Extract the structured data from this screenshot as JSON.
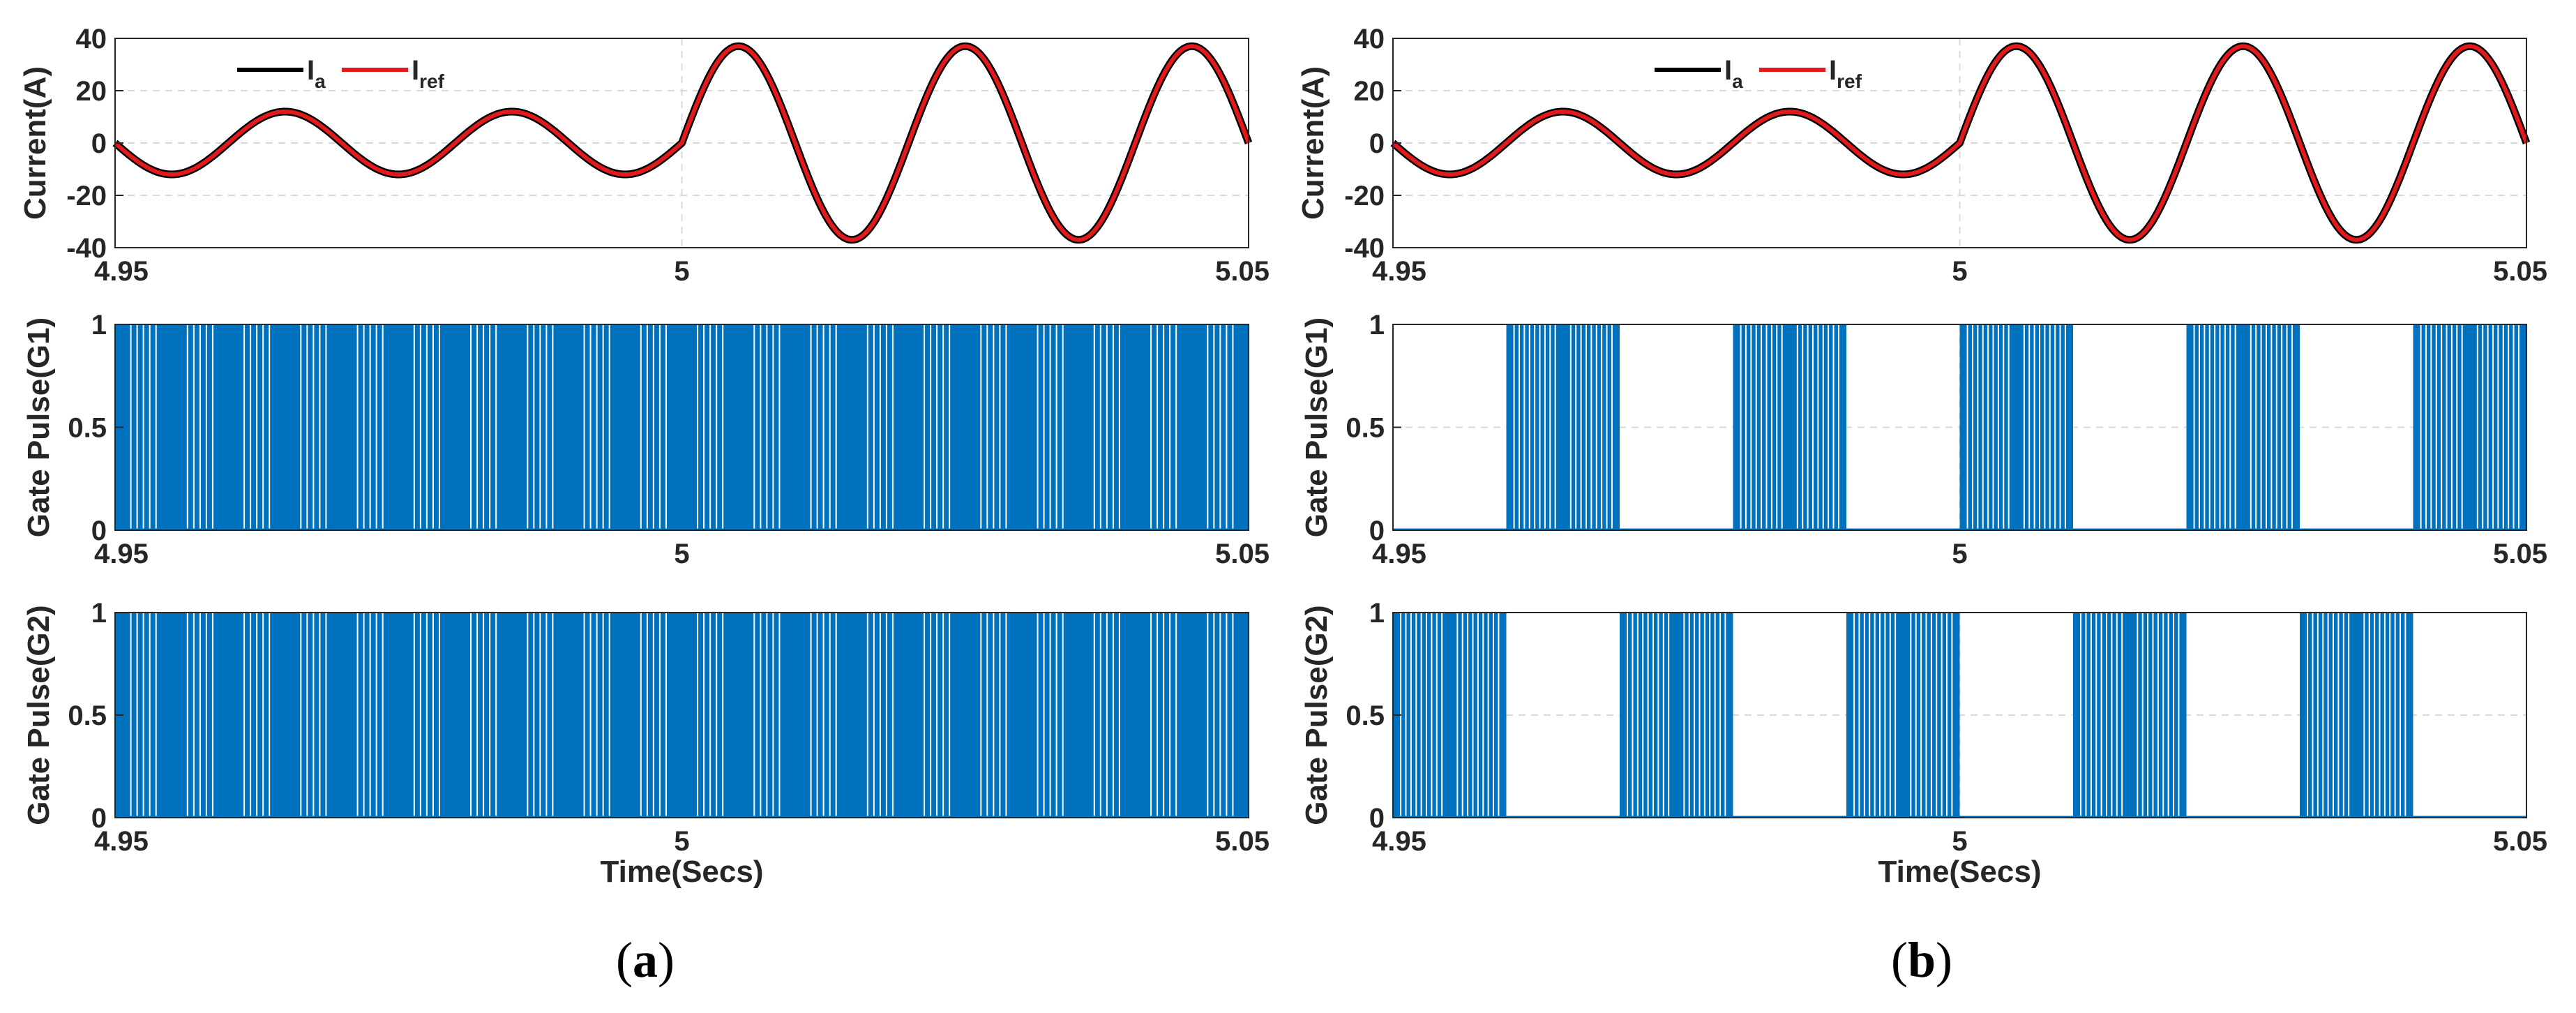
{
  "chart_data": [
    {
      "panel": "a",
      "type": "line",
      "ylabel": "Current(A)",
      "xlim": [
        4.95,
        5.05
      ],
      "ylim": [
        -40,
        40
      ],
      "xticks": [
        "4.95",
        "5",
        "5.05"
      ],
      "yticks": [
        "-40",
        "-20",
        "0",
        "20",
        "40"
      ],
      "grid": true,
      "legend": "top-left",
      "frequency_hz": 50,
      "series": [
        {
          "name": "Ia",
          "name_main": "I",
          "name_sub": "a",
          "color": "#000000",
          "amplitude_before": 12,
          "amplitude_after": 37,
          "step_at": 5.0,
          "phase": "negative-sine"
        },
        {
          "name": "Iref",
          "name_main": "I",
          "name_sub": "ref",
          "color": "#e31a1c",
          "amplitude_before": 12,
          "amplitude_after": 37,
          "step_at": 5.0,
          "phase": "negative-sine"
        }
      ]
    },
    {
      "panel": "a",
      "type": "area",
      "ylabel": "Gate Pulse(G1)",
      "xlim": [
        4.95,
        5.05
      ],
      "ylim": [
        0,
        1
      ],
      "xticks": [
        "4.95",
        "5",
        "5.05"
      ],
      "yticks": [
        "0",
        "0.5",
        "1"
      ],
      "color": "#0072bd",
      "pattern": "continuous-pwm",
      "active_intervals": [
        [
          4.95,
          5.05
        ]
      ]
    },
    {
      "panel": "a",
      "type": "area",
      "ylabel": "Gate Pulse(G2)",
      "xlabel": "Time(Secs)",
      "xlim": [
        4.95,
        5.05
      ],
      "ylim": [
        0,
        1
      ],
      "xticks": [
        "4.95",
        "5",
        "5.05"
      ],
      "yticks": [
        "0",
        "0.5",
        "1"
      ],
      "color": "#0072bd",
      "pattern": "continuous-pwm",
      "active_intervals": [
        [
          4.95,
          5.05
        ]
      ]
    },
    {
      "panel": "b",
      "type": "line",
      "ylabel": "Current(A)",
      "xlim": [
        4.95,
        5.05
      ],
      "ylim": [
        -40,
        40
      ],
      "xticks": [
        "4.95",
        "5",
        "5.05"
      ],
      "yticks": [
        "-40",
        "-20",
        "0",
        "20",
        "40"
      ],
      "grid": true,
      "legend": "top-center",
      "frequency_hz": 50,
      "series": [
        {
          "name": "Ia",
          "name_main": "I",
          "name_sub": "a",
          "color": "#000000",
          "amplitude_before": 12,
          "amplitude_after": 37,
          "step_at": 5.0,
          "phase": "negative-sine"
        },
        {
          "name": "Iref",
          "name_main": "I",
          "name_sub": "ref",
          "color": "#e31a1c",
          "amplitude_before": 12,
          "amplitude_after": 37,
          "step_at": 5.0,
          "phase": "negative-sine"
        }
      ]
    },
    {
      "panel": "b",
      "type": "area",
      "ylabel": "Gate Pulse(G1)",
      "xlim": [
        4.95,
        5.05
      ],
      "ylim": [
        0,
        1
      ],
      "xticks": [
        "4.95",
        "5",
        "5.05"
      ],
      "yticks": [
        "0",
        "0.5",
        "1"
      ],
      "color": "#0072bd",
      "pattern": "half-cycle-pwm",
      "active_intervals": [
        [
          4.96,
          4.97
        ],
        [
          4.98,
          4.99
        ],
        [
          5.0,
          5.01
        ],
        [
          5.02,
          5.03
        ],
        [
          5.04,
          5.05
        ]
      ]
    },
    {
      "panel": "b",
      "type": "area",
      "ylabel": "Gate Pulse(G2)",
      "xlabel": "Time(Secs)",
      "xlim": [
        4.95,
        5.05
      ],
      "ylim": [
        0,
        1
      ],
      "xticks": [
        "4.95",
        "5",
        "5.05"
      ],
      "yticks": [
        "0",
        "0.5",
        "1"
      ],
      "color": "#0072bd",
      "pattern": "half-cycle-pwm",
      "active_intervals": [
        [
          4.95,
          4.96
        ],
        [
          4.97,
          4.98
        ],
        [
          4.99,
          5.0
        ],
        [
          5.01,
          5.02
        ],
        [
          5.03,
          5.04
        ]
      ]
    }
  ],
  "captions": [
    {
      "letter": "a",
      "open": "(",
      "close": ")"
    },
    {
      "letter": "b",
      "open": "(",
      "close": ")"
    }
  ]
}
